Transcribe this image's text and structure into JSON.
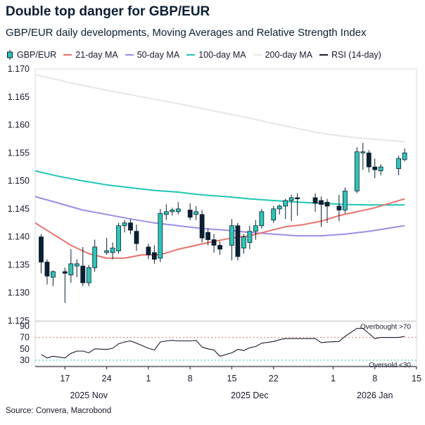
{
  "chart_data": {
    "type": "candlestick",
    "title": "Double top danger for GBP/EUR",
    "subtitle": "GBP/EUR daily developments, Moving Averages and Relative Strength Index",
    "source": "Source: Convera, Macrobond",
    "legend": [
      {
        "name": "GBP/EUR",
        "color": "#0b1f33",
        "kind": "candle"
      },
      {
        "name": "21-day MA",
        "color": "#e8736c",
        "kind": "line"
      },
      {
        "name": "50-day MA",
        "color": "#9b8ee6",
        "kind": "line"
      },
      {
        "name": "100-day MA",
        "color": "#1fc6b3",
        "kind": "line"
      },
      {
        "name": "200-day MA",
        "color": "#e6e6e6",
        "kind": "line"
      },
      {
        "name": "RSI (14-day)",
        "color": "#1a1a2e",
        "kind": "line"
      }
    ],
    "colors": {
      "up": "#2ec4b6",
      "down": "#0b1f33"
    },
    "ylim": [
      1.125,
      1.17
    ],
    "yticks": [
      "1.125",
      "1.130",
      "1.135",
      "1.140",
      "1.145",
      "1.150",
      "1.155",
      "1.160",
      "1.165",
      "1.170"
    ],
    "x_start": "2025-11-12",
    "x_end": "2026-01-15",
    "xticks": [
      {
        "date": "2025-11-17",
        "label": "17"
      },
      {
        "date": "2025-11-24",
        "label": "24"
      },
      {
        "date": "2025-12-01",
        "label": "1"
      },
      {
        "date": "2025-12-08",
        "label": "8"
      },
      {
        "date": "2025-12-15",
        "label": "15"
      },
      {
        "date": "2025-12-22",
        "label": "22"
      },
      {
        "date": "2026-01-01",
        "label": "1"
      },
      {
        "date": "2026-01-08",
        "label": "8"
      },
      {
        "date": "2026-01-15",
        "label": "15"
      }
    ],
    "month_labels": [
      {
        "date": "2025-11-21",
        "label": "2025 Nov"
      },
      {
        "date": "2025-12-18",
        "label": "2025 Dec"
      },
      {
        "date": "2026-01-08",
        "label": "2026 Jan"
      }
    ],
    "ohlc": [
      {
        "date": "2025-11-13",
        "o": 1.14,
        "h": 1.1405,
        "l": 1.1335,
        "c": 1.1355
      },
      {
        "date": "2025-11-14",
        "o": 1.1355,
        "h": 1.136,
        "l": 1.1315,
        "c": 1.133
      },
      {
        "date": "2025-11-15",
        "o": 1.1328,
        "h": 1.134,
        "l": 1.1312,
        "c": 1.1338
      },
      {
        "date": "2025-11-17",
        "o": 1.1338,
        "h": 1.1345,
        "l": 1.1282,
        "c": 1.1335
      },
      {
        "date": "2025-11-18",
        "o": 1.1332,
        "h": 1.1378,
        "l": 1.1318,
        "c": 1.1352
      },
      {
        "date": "2025-11-19",
        "o": 1.1348,
        "h": 1.136,
        "l": 1.1328,
        "c": 1.1352
      },
      {
        "date": "2025-11-20",
        "o": 1.1348,
        "h": 1.1382,
        "l": 1.1312,
        "c": 1.1318
      },
      {
        "date": "2025-11-21",
        "o": 1.1318,
        "h": 1.135,
        "l": 1.1312,
        "c": 1.1345
      },
      {
        "date": "2025-11-22",
        "o": 1.1345,
        "h": 1.1395,
        "l": 1.1338,
        "c": 1.1382
      },
      {
        "date": "2025-11-24",
        "o": 1.1372,
        "h": 1.1398,
        "l": 1.1368,
        "c": 1.1375
      },
      {
        "date": "2025-11-25",
        "o": 1.1372,
        "h": 1.139,
        "l": 1.136,
        "c": 1.138
      },
      {
        "date": "2025-11-26",
        "o": 1.1375,
        "h": 1.1425,
        "l": 1.137,
        "c": 1.142
      },
      {
        "date": "2025-11-27",
        "o": 1.142,
        "h": 1.143,
        "l": 1.1408,
        "c": 1.1425
      },
      {
        "date": "2025-11-28",
        "o": 1.1425,
        "h": 1.1432,
        "l": 1.1405,
        "c": 1.1412
      },
      {
        "date": "2025-11-29",
        "o": 1.141,
        "h": 1.1422,
        "l": 1.1375,
        "c": 1.1388
      },
      {
        "date": "2025-12-01",
        "o": 1.1382,
        "h": 1.1388,
        "l": 1.136,
        "c": 1.1368
      },
      {
        "date": "2025-12-02",
        "o": 1.1372,
        "h": 1.1385,
        "l": 1.1352,
        "c": 1.136
      },
      {
        "date": "2025-12-03",
        "o": 1.1362,
        "h": 1.145,
        "l": 1.1355,
        "c": 1.1442
      },
      {
        "date": "2025-12-04",
        "o": 1.144,
        "h": 1.1458,
        "l": 1.143,
        "c": 1.1445
      },
      {
        "date": "2025-12-05",
        "o": 1.1445,
        "h": 1.1452,
        "l": 1.1438,
        "c": 1.1448
      },
      {
        "date": "2025-12-06",
        "o": 1.1445,
        "h": 1.1462,
        "l": 1.144,
        "c": 1.145
      },
      {
        "date": "2025-12-08",
        "o": 1.1448,
        "h": 1.146,
        "l": 1.143,
        "c": 1.1435
      },
      {
        "date": "2025-12-09",
        "o": 1.144,
        "h": 1.1455,
        "l": 1.143,
        "c": 1.1445
      },
      {
        "date": "2025-12-10",
        "o": 1.144,
        "h": 1.1448,
        "l": 1.139,
        "c": 1.1398
      },
      {
        "date": "2025-12-11",
        "o": 1.1408,
        "h": 1.1415,
        "l": 1.1385,
        "c": 1.1395
      },
      {
        "date": "2025-12-12",
        "o": 1.1395,
        "h": 1.1405,
        "l": 1.1372,
        "c": 1.1385
      },
      {
        "date": "2025-12-13",
        "o": 1.1385,
        "h": 1.1392,
        "l": 1.1368,
        "c": 1.1378
      },
      {
        "date": "2025-12-15",
        "o": 1.1385,
        "h": 1.1432,
        "l": 1.1358,
        "c": 1.142
      },
      {
        "date": "2025-12-16",
        "o": 1.142,
        "h": 1.1425,
        "l": 1.1358,
        "c": 1.1365
      },
      {
        "date": "2025-12-17",
        "o": 1.138,
        "h": 1.1405,
        "l": 1.137,
        "c": 1.14
      },
      {
        "date": "2025-12-18",
        "o": 1.139,
        "h": 1.142,
        "l": 1.1378,
        "c": 1.141
      },
      {
        "date": "2025-12-19",
        "o": 1.141,
        "h": 1.143,
        "l": 1.1395,
        "c": 1.142
      },
      {
        "date": "2025-12-20",
        "o": 1.142,
        "h": 1.145,
        "l": 1.1415,
        "c": 1.1445
      },
      {
        "date": "2025-12-22",
        "o": 1.143,
        "h": 1.1455,
        "l": 1.1425,
        "c": 1.145
      },
      {
        "date": "2025-12-23",
        "o": 1.145,
        "h": 1.1458,
        "l": 1.144,
        "c": 1.1455
      },
      {
        "date": "2025-12-24",
        "o": 1.1455,
        "h": 1.1468,
        "l": 1.1432,
        "c": 1.1465
      },
      {
        "date": "2025-12-25",
        "o": 1.1465,
        "h": 1.1475,
        "l": 1.1428,
        "c": 1.147
      },
      {
        "date": "2025-12-26",
        "o": 1.147,
        "h": 1.1478,
        "l": 1.1438,
        "c": 1.1468
      },
      {
        "date": "2025-12-29",
        "o": 1.147,
        "h": 1.1478,
        "l": 1.1445,
        "c": 1.146
      },
      {
        "date": "2025-12-30",
        "o": 1.1465,
        "h": 1.1472,
        "l": 1.1418,
        "c": 1.1458
      },
      {
        "date": "2025-12-31",
        "o": 1.1462,
        "h": 1.1468,
        "l": 1.1425,
        "c": 1.1455
      },
      {
        "date": "2026-01-02",
        "o": 1.1455,
        "h": 1.1475,
        "l": 1.1428,
        "c": 1.1448
      },
      {
        "date": "2026-01-03",
        "o": 1.1448,
        "h": 1.1488,
        "l": 1.1442,
        "c": 1.1482
      },
      {
        "date": "2026-01-05",
        "o": 1.1482,
        "h": 1.156,
        "l": 1.1478,
        "c": 1.1552
      },
      {
        "date": "2026-01-06",
        "o": 1.155,
        "h": 1.1568,
        "l": 1.152,
        "c": 1.1552
      },
      {
        "date": "2026-01-07",
        "o": 1.155,
        "h": 1.1555,
        "l": 1.1515,
        "c": 1.1525
      },
      {
        "date": "2026-01-08",
        "o": 1.1525,
        "h": 1.154,
        "l": 1.1505,
        "c": 1.152
      },
      {
        "date": "2026-01-09",
        "o": 1.1518,
        "h": 1.153,
        "l": 1.151,
        "c": 1.1525
      },
      {
        "date": "2026-01-12",
        "o": 1.1522,
        "h": 1.1545,
        "l": 1.151,
        "c": 1.154
      },
      {
        "date": "2026-01-13",
        "o": 1.1538,
        "h": 1.1558,
        "l": 1.1535,
        "c": 1.155
      }
    ],
    "ma21": [
      {
        "date": "2025-11-12",
        "v": 1.1425
      },
      {
        "date": "2025-11-15",
        "v": 1.1405
      },
      {
        "date": "2025-11-18",
        "v": 1.1385
      },
      {
        "date": "2025-11-21",
        "v": 1.137
      },
      {
        "date": "2025-11-24",
        "v": 1.1362
      },
      {
        "date": "2025-11-27",
        "v": 1.1362
      },
      {
        "date": "2025-11-30",
        "v": 1.1368
      },
      {
        "date": "2025-12-03",
        "v": 1.1368
      },
      {
        "date": "2025-12-06",
        "v": 1.1378
      },
      {
        "date": "2025-12-09",
        "v": 1.1385
      },
      {
        "date": "2025-12-12",
        "v": 1.1392
      },
      {
        "date": "2025-12-15",
        "v": 1.1398
      },
      {
        "date": "2025-12-18",
        "v": 1.1402
      },
      {
        "date": "2025-12-21",
        "v": 1.141
      },
      {
        "date": "2025-12-24",
        "v": 1.1418
      },
      {
        "date": "2025-12-27",
        "v": 1.1422
      },
      {
        "date": "2025-12-30",
        "v": 1.1428
      },
      {
        "date": "2026-01-02",
        "v": 1.1438
      },
      {
        "date": "2026-01-05",
        "v": 1.1445
      },
      {
        "date": "2026-01-08",
        "v": 1.1452
      },
      {
        "date": "2026-01-13",
        "v": 1.1468
      }
    ],
    "ma50": [
      {
        "date": "2025-11-12",
        "v": 1.1472
      },
      {
        "date": "2025-11-16",
        "v": 1.146
      },
      {
        "date": "2025-11-20",
        "v": 1.1448
      },
      {
        "date": "2025-11-24",
        "v": 1.144
      },
      {
        "date": "2025-11-28",
        "v": 1.1432
      },
      {
        "date": "2025-12-02",
        "v": 1.1425
      },
      {
        "date": "2025-12-06",
        "v": 1.142
      },
      {
        "date": "2025-12-10",
        "v": 1.1415
      },
      {
        "date": "2025-12-14",
        "v": 1.1412
      },
      {
        "date": "2025-12-18",
        "v": 1.1408
      },
      {
        "date": "2025-12-22",
        "v": 1.1405
      },
      {
        "date": "2025-12-26",
        "v": 1.1402
      },
      {
        "date": "2025-12-30",
        "v": 1.1402
      },
      {
        "date": "2026-01-03",
        "v": 1.1405
      },
      {
        "date": "2026-01-07",
        "v": 1.141
      },
      {
        "date": "2026-01-10",
        "v": 1.1415
      },
      {
        "date": "2026-01-13",
        "v": 1.142
      }
    ],
    "ma100": [
      {
        "date": "2025-11-12",
        "v": 1.1518
      },
      {
        "date": "2025-11-16",
        "v": 1.1508
      },
      {
        "date": "2025-11-20",
        "v": 1.15
      },
      {
        "date": "2025-11-24",
        "v": 1.1493
      },
      {
        "date": "2025-11-28",
        "v": 1.1488
      },
      {
        "date": "2025-12-02",
        "v": 1.1483
      },
      {
        "date": "2025-12-06",
        "v": 1.148
      },
      {
        "date": "2025-12-10",
        "v": 1.1475
      },
      {
        "date": "2025-12-14",
        "v": 1.1472
      },
      {
        "date": "2025-12-18",
        "v": 1.1468
      },
      {
        "date": "2025-12-22",
        "v": 1.1465
      },
      {
        "date": "2025-12-26",
        "v": 1.1462
      },
      {
        "date": "2025-12-30",
        "v": 1.146
      },
      {
        "date": "2026-01-03",
        "v": 1.1458
      },
      {
        "date": "2026-01-07",
        "v": 1.1457
      },
      {
        "date": "2026-01-10",
        "v": 1.1457
      },
      {
        "date": "2026-01-13",
        "v": 1.1457
      }
    ],
    "ma200": [
      {
        "date": "2025-11-12",
        "v": 1.169
      },
      {
        "date": "2025-11-18",
        "v": 1.1675
      },
      {
        "date": "2025-11-24",
        "v": 1.1662
      },
      {
        "date": "2025-11-30",
        "v": 1.165
      },
      {
        "date": "2025-12-06",
        "v": 1.1638
      },
      {
        "date": "2025-12-12",
        "v": 1.1625
      },
      {
        "date": "2025-12-18",
        "v": 1.1612
      },
      {
        "date": "2025-12-24",
        "v": 1.1598
      },
      {
        "date": "2025-12-30",
        "v": 1.1585
      },
      {
        "date": "2026-01-05",
        "v": 1.1577
      },
      {
        "date": "2026-01-13",
        "v": 1.157
      }
    ],
    "rsi": {
      "ylim": [
        20,
        98
      ],
      "yticks": [
        "30",
        "50",
        "70",
        "90"
      ],
      "overbought": 70,
      "oversold": 30,
      "overbought_label": "Overbought >70",
      "oversold_label": "Oversold <30",
      "values": [
        {
          "date": "2025-11-13",
          "v": 40
        },
        {
          "date": "2025-11-14",
          "v": 34
        },
        {
          "date": "2025-11-15",
          "v": 37
        },
        {
          "date": "2025-11-17",
          "v": 34
        },
        {
          "date": "2025-11-18",
          "v": 42
        },
        {
          "date": "2025-11-19",
          "v": 46
        },
        {
          "date": "2025-11-20",
          "v": 46
        },
        {
          "date": "2025-11-21",
          "v": 43
        },
        {
          "date": "2025-11-22",
          "v": 50
        },
        {
          "date": "2025-11-24",
          "v": 49
        },
        {
          "date": "2025-11-25",
          "v": 51
        },
        {
          "date": "2025-11-26",
          "v": 59
        },
        {
          "date": "2025-11-27",
          "v": 62
        },
        {
          "date": "2025-11-28",
          "v": 64
        },
        {
          "date": "2025-11-29",
          "v": 60
        },
        {
          "date": "2025-12-01",
          "v": 51
        },
        {
          "date": "2025-12-02",
          "v": 48
        },
        {
          "date": "2025-12-03",
          "v": 62
        },
        {
          "date": "2025-12-04",
          "v": 64
        },
        {
          "date": "2025-12-05",
          "v": 65
        },
        {
          "date": "2025-12-06",
          "v": 64
        },
        {
          "date": "2025-12-08",
          "v": 64
        },
        {
          "date": "2025-12-09",
          "v": 65
        },
        {
          "date": "2025-12-10",
          "v": 53
        },
        {
          "date": "2025-12-11",
          "v": 50
        },
        {
          "date": "2025-12-12",
          "v": 48
        },
        {
          "date": "2025-12-13",
          "v": 37
        },
        {
          "date": "2025-12-15",
          "v": 43
        },
        {
          "date": "2025-12-16",
          "v": 49
        },
        {
          "date": "2025-12-17",
          "v": 47
        },
        {
          "date": "2025-12-18",
          "v": 52
        },
        {
          "date": "2025-12-19",
          "v": 54
        },
        {
          "date": "2025-12-20",
          "v": 60
        },
        {
          "date": "2025-12-22",
          "v": 63
        },
        {
          "date": "2025-12-23",
          "v": 66
        },
        {
          "date": "2025-12-24",
          "v": 68
        },
        {
          "date": "2025-12-25",
          "v": 68
        },
        {
          "date": "2025-12-26",
          "v": 68
        },
        {
          "date": "2025-12-29",
          "v": 68
        },
        {
          "date": "2025-12-30",
          "v": 61
        },
        {
          "date": "2025-12-31",
          "v": 62
        },
        {
          "date": "2026-01-02",
          "v": 63
        },
        {
          "date": "2026-01-03",
          "v": 72
        },
        {
          "date": "2026-01-05",
          "v": 86
        },
        {
          "date": "2026-01-06",
          "v": 86
        },
        {
          "date": "2026-01-07",
          "v": 77
        },
        {
          "date": "2026-01-08",
          "v": 68
        },
        {
          "date": "2026-01-09",
          "v": 70
        },
        {
          "date": "2026-01-12",
          "v": 70
        },
        {
          "date": "2026-01-13",
          "v": 72
        }
      ]
    }
  }
}
